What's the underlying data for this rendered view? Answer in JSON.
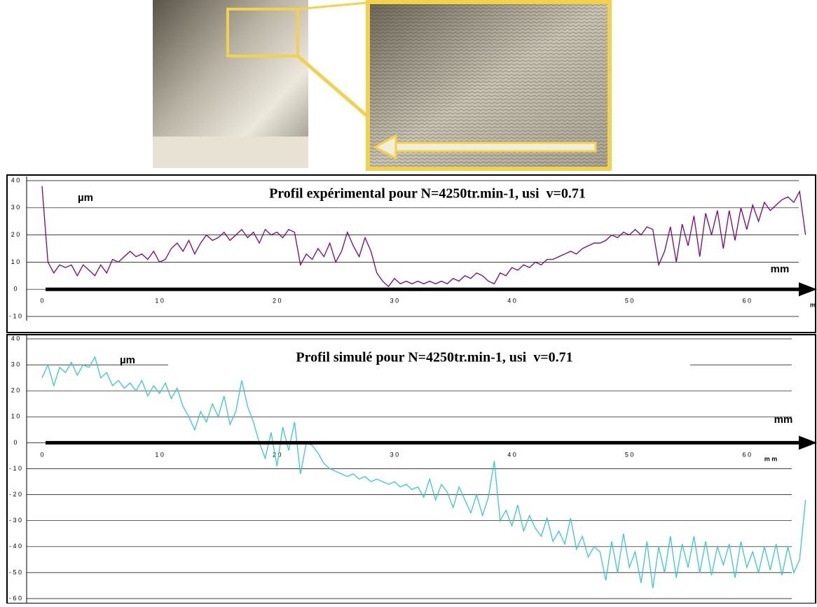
{
  "chart_data": [
    {
      "type": "line",
      "title": "Profil expérimental pour N=4250tr.min-1, usi  v=0.71",
      "ylabel": "µm",
      "xlabel": "mm",
      "annotations": [
        "m"
      ],
      "color": "#800080",
      "grid": true,
      "xlim": [
        0,
        65.5
      ],
      "ylim": [
        -10,
        40
      ],
      "xticks": [
        0,
        {
          "value": 10,
          "label": "1 0"
        },
        {
          "value": 20,
          "label": "2 0"
        },
        {
          "value": 30,
          "label": "3 0"
        },
        {
          "value": 40,
          "label": "4 0"
        },
        {
          "value": 50,
          "label": "5 0"
        },
        {
          "value": 60,
          "label": "6 0"
        }
      ],
      "yticks": [
        {
          "value": -10,
          "label": "- 1 0"
        },
        0,
        {
          "value": 10,
          "label": "1 0"
        },
        {
          "value": 20,
          "label": "2 0"
        },
        {
          "value": 30,
          "label": "3 0"
        },
        {
          "value": 40,
          "label": "4 0"
        }
      ],
      "x": [
        0,
        0.5,
        1,
        1.5,
        2,
        2.5,
        3,
        3.5,
        4,
        4.5,
        5,
        5.5,
        6,
        6.5,
        7,
        7.5,
        8,
        8.5,
        9,
        9.5,
        10,
        10.5,
        11,
        11.5,
        12,
        12.5,
        13,
        13.5,
        14,
        14.5,
        15,
        15.5,
        16,
        16.5,
        17,
        17.5,
        18,
        18.5,
        19,
        19.5,
        20,
        20.5,
        21,
        21.5,
        22,
        22.5,
        23,
        23.5,
        24,
        24.5,
        25,
        25.5,
        26,
        26.5,
        27,
        27.5,
        28,
        28.5,
        29,
        29.5,
        30,
        30.5,
        31,
        31.5,
        32,
        32.5,
        33,
        33.5,
        34,
        34.5,
        35,
        35.5,
        36,
        36.5,
        37,
        37.5,
        38,
        38.5,
        39,
        39.5,
        40,
        40.5,
        41,
        41.5,
        42,
        42.5,
        43,
        43.5,
        44,
        44.5,
        45,
        45.5,
        46,
        46.5,
        47,
        47.5,
        48,
        48.5,
        49,
        49.5,
        50,
        50.5,
        51,
        51.5,
        52,
        52.5,
        53,
        53.5,
        54,
        54.5,
        55,
        55.5,
        56,
        56.5,
        57,
        57.5,
        58,
        58.5,
        59,
        59.5,
        60,
        60.5,
        61,
        61.5,
        62,
        62.5,
        63,
        63.5,
        64,
        64.5,
        65
      ],
      "values": [
        38,
        10,
        6,
        9,
        8,
        9,
        5,
        9,
        7,
        5,
        9,
        6,
        11,
        10,
        12,
        14,
        12,
        13,
        11,
        14,
        10,
        11,
        15,
        17,
        14,
        18,
        13,
        17,
        20,
        18,
        19,
        21,
        18,
        20,
        22,
        19,
        21,
        17,
        22,
        20,
        21,
        19,
        22,
        21,
        9,
        13,
        11,
        15,
        12,
        17,
        10,
        14,
        21,
        16,
        12,
        19,
        14,
        6,
        3,
        1,
        4,
        2,
        3,
        2,
        3,
        2,
        3,
        2,
        3,
        2,
        4,
        3,
        5,
        4,
        6,
        5,
        3,
        2,
        6,
        5,
        8,
        7,
        9,
        8,
        10,
        9,
        11,
        11,
        12,
        13,
        14,
        13,
        15,
        16,
        17,
        17,
        18,
        20,
        19,
        21,
        20,
        22,
        20,
        23,
        22,
        9,
        14,
        23,
        10,
        24,
        16,
        27,
        12,
        28,
        20,
        29,
        15,
        29,
        18,
        30,
        22,
        31,
        25,
        32,
        29,
        31,
        33,
        34,
        32,
        36,
        20
      ]
    },
    {
      "type": "line",
      "title": "Profil simulé pour N=4250tr.min-1, usi  v=0.71",
      "ylabel": "µm",
      "xlabel": "mm",
      "annotations": [
        "m m"
      ],
      "color": "#33cccc",
      "grid": true,
      "xlim": [
        0,
        65.5
      ],
      "ylim": [
        -60,
        40
      ],
      "xticks": [
        0,
        {
          "value": 10,
          "label": "1 0"
        },
        {
          "value": 20,
          "label": "2 0"
        },
        {
          "value": 30,
          "label": "3 0"
        },
        {
          "value": 40,
          "label": "4 0"
        },
        {
          "value": 50,
          "label": "5 0"
        },
        {
          "value": 60,
          "label": "6 0"
        }
      ],
      "yticks": [
        {
          "value": -60,
          "label": "- 6 0"
        },
        {
          "value": -50,
          "label": "- 5 0"
        },
        {
          "value": -40,
          "label": "- 4 0"
        },
        {
          "value": -30,
          "label": "- 3 0"
        },
        {
          "value": -20,
          "label": "- 2 0"
        },
        {
          "value": -10,
          "label": "- 1 0"
        },
        0,
        {
          "value": 10,
          "label": "1 0"
        },
        {
          "value": 20,
          "label": "2 0"
        },
        {
          "value": 30,
          "label": "3 0"
        },
        {
          "value": 40,
          "label": "4 0"
        }
      ],
      "x": [
        0,
        0.5,
        1,
        1.5,
        2,
        2.5,
        3,
        3.5,
        4,
        4.5,
        5,
        5.5,
        6,
        6.5,
        7,
        7.5,
        8,
        8.5,
        9,
        9.5,
        10,
        10.5,
        11,
        11.5,
        12,
        12.5,
        13,
        13.5,
        14,
        14.5,
        15,
        15.5,
        16,
        16.5,
        17,
        17.5,
        18,
        18.5,
        19,
        19.5,
        20,
        20.5,
        21,
        21.5,
        22,
        22.5,
        23,
        23.5,
        24,
        24.5,
        25,
        25.5,
        26,
        26.5,
        27,
        27.5,
        28,
        28.5,
        29,
        29.5,
        30,
        30.5,
        31,
        31.5,
        32,
        32.5,
        33,
        33.5,
        34,
        34.5,
        35,
        35.5,
        36,
        36.5,
        37,
        37.5,
        38,
        38.5,
        39,
        39.5,
        40,
        40.5,
        41,
        41.5,
        42,
        42.5,
        43,
        43.5,
        44,
        44.5,
        45,
        45.5,
        46,
        46.5,
        47,
        47.5,
        48,
        48.5,
        49,
        49.5,
        50,
        50.5,
        51,
        51.5,
        52,
        52.5,
        53,
        53.5,
        54,
        54.5,
        55,
        55.5,
        56,
        56.5,
        57,
        57.5,
        58,
        58.5,
        59,
        59.5,
        60,
        60.5,
        61,
        61.5,
        62,
        62.5,
        63,
        63.5,
        64,
        64.5,
        65
      ],
      "values": [
        25,
        30,
        22,
        29,
        27,
        31,
        26,
        30,
        29,
        33,
        25,
        27,
        22,
        24,
        21,
        23,
        20,
        24,
        18,
        22,
        19,
        23,
        17,
        21,
        14,
        10,
        5,
        12,
        8,
        15,
        10,
        18,
        7,
        12,
        24,
        14,
        8,
        0,
        -6,
        4,
        -9,
        6,
        -3,
        8,
        -12,
        0,
        -1,
        -4,
        -8,
        -10,
        -11,
        -12,
        -13,
        -12,
        -14,
        -13,
        -15,
        -14,
        -15,
        -16,
        -15,
        -17,
        -16,
        -18,
        -17,
        -21,
        -14,
        -22,
        -16,
        -19,
        -25,
        -17,
        -22,
        -27,
        -20,
        -28,
        -21,
        -7,
        -30,
        -26,
        -32,
        -24,
        -34,
        -28,
        -33,
        -36,
        -29,
        -38,
        -34,
        -39,
        -29,
        -41,
        -36,
        -44,
        -40,
        -42,
        -53,
        -38,
        -50,
        -35,
        -48,
        -42,
        -54,
        -38,
        -56,
        -40,
        -50,
        -36,
        -52,
        -39,
        -48,
        -36,
        -50,
        -38,
        -51,
        -40,
        -47,
        -39,
        -52,
        -38,
        -48,
        -42,
        -50,
        -40,
        -49,
        -39,
        -51,
        -40,
        -50,
        -45,
        -22
      ]
    }
  ]
}
